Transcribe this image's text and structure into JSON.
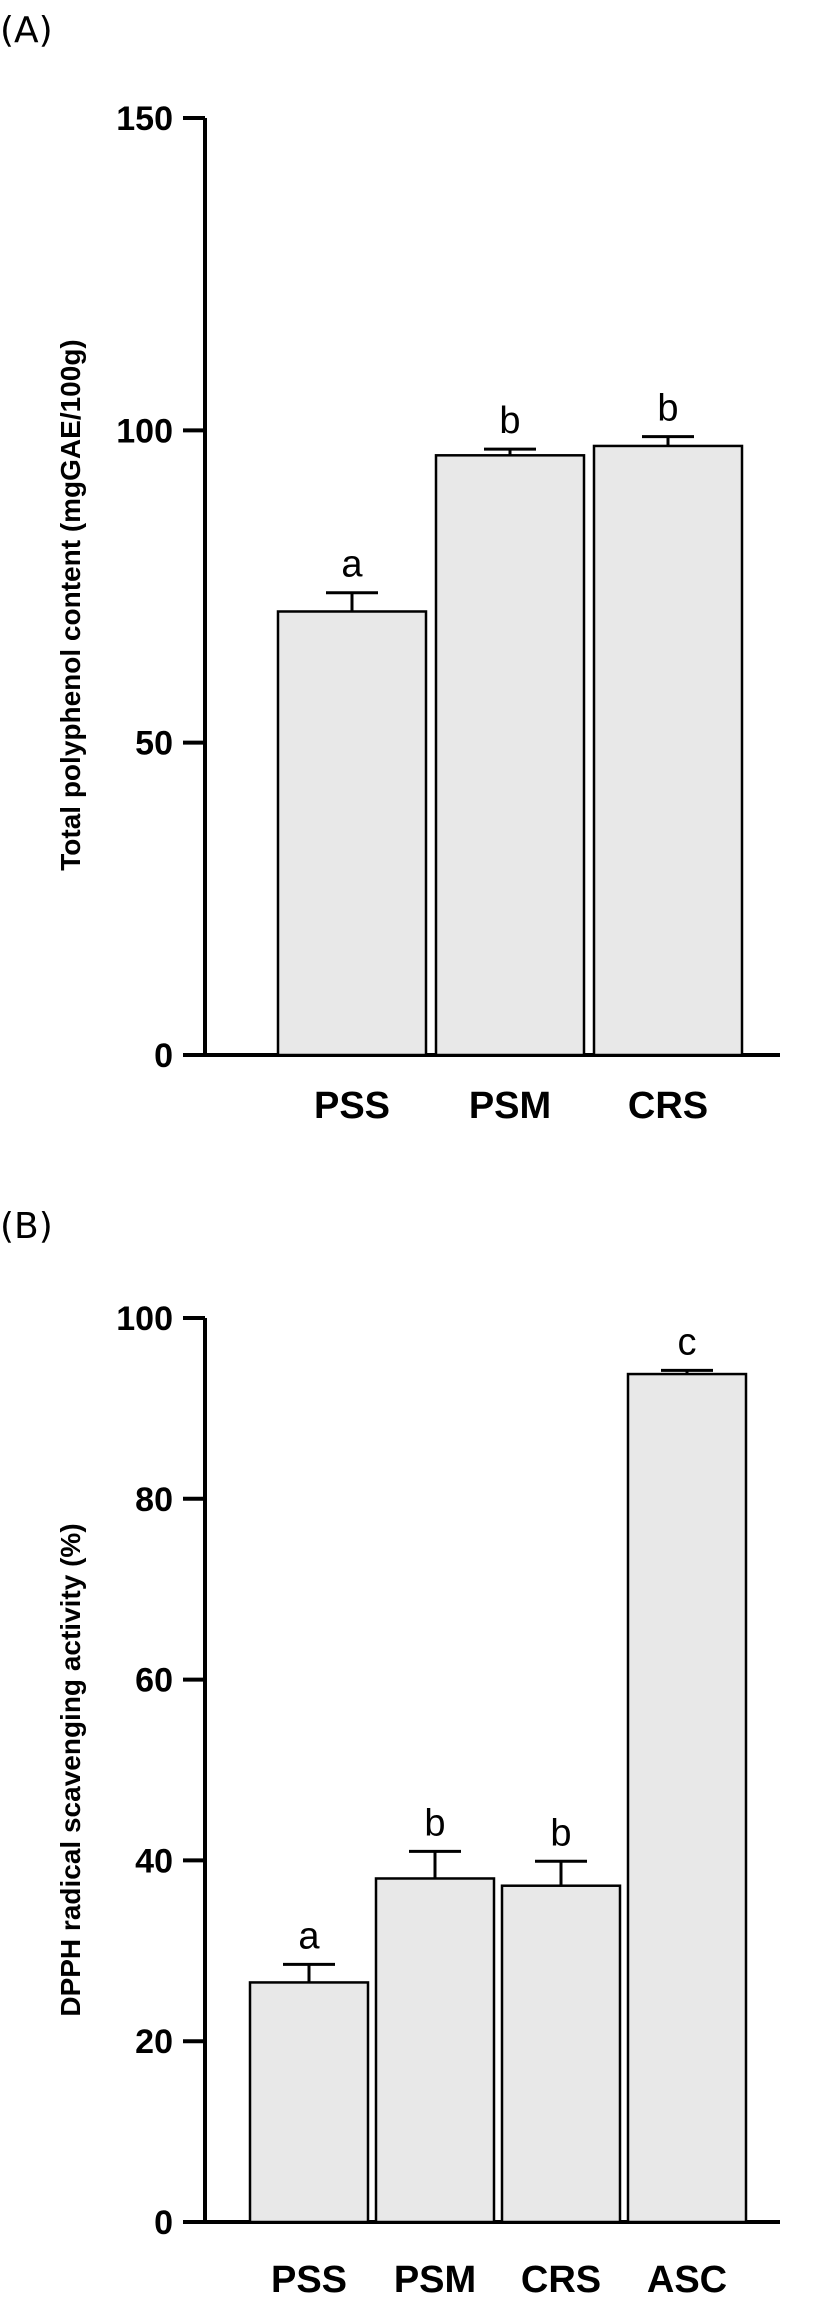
{
  "chart_data": [
    {
      "panel": "(A)",
      "type": "bar",
      "categories": [
        "PSS",
        "PSM",
        "CRS"
      ],
      "values": [
        71,
        96,
        97.5
      ],
      "errors": [
        3,
        1,
        1.5
      ],
      "significance": [
        "a",
        "b",
        "b"
      ],
      "ylabel": "Total polyphenol content (mgGAE/100g)",
      "ylim": [
        0,
        150
      ],
      "yticks": [
        0,
        50,
        100,
        150
      ],
      "bar_color": "#e8e8e8"
    },
    {
      "panel": "(B)",
      "type": "bar",
      "categories": [
        "PSS",
        "PSM",
        "CRS",
        "ASC"
      ],
      "values": [
        26.5,
        38,
        37.2,
        93.8
      ],
      "errors": [
        2,
        3,
        2.7,
        0.4
      ],
      "significance": [
        "a",
        "b",
        "b",
        "c"
      ],
      "ylabel": "DPPH radical scavenging activity (%)",
      "ylim": [
        0,
        100
      ],
      "yticks": [
        0,
        20,
        40,
        60,
        80,
        100
      ],
      "bar_color": "#e8e8e8"
    }
  ]
}
